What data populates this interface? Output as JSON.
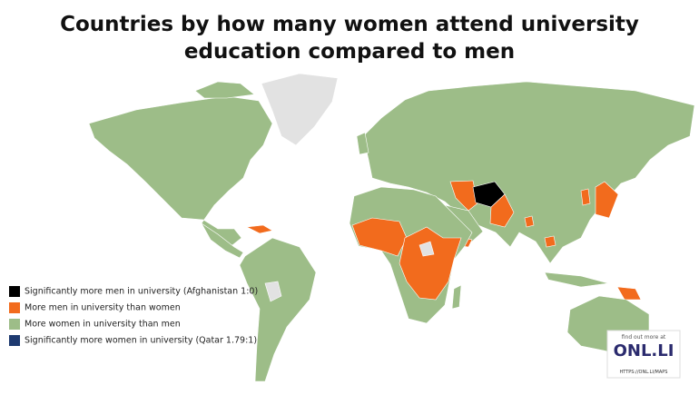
{
  "title_lines": [
    "Countries by how many women attend university",
    "education compared to men"
  ],
  "legend": [
    {
      "label": "Significantly more men in university (Afghanistan 1:0)",
      "color": "#000000"
    },
    {
      "label": "More men in university than women",
      "color": "#f26b1d"
    },
    {
      "label": "More women in university than men",
      "color": "#9dbd88"
    },
    {
      "label": "Significantly more women in university (Qatar 1.79:1)",
      "color": "#1e3a70"
    }
  ],
  "logo": {
    "tagline": "find out more at",
    "brand": "ONL.LI",
    "url": "HTTPS://ONL.LI/MAPS"
  }
}
